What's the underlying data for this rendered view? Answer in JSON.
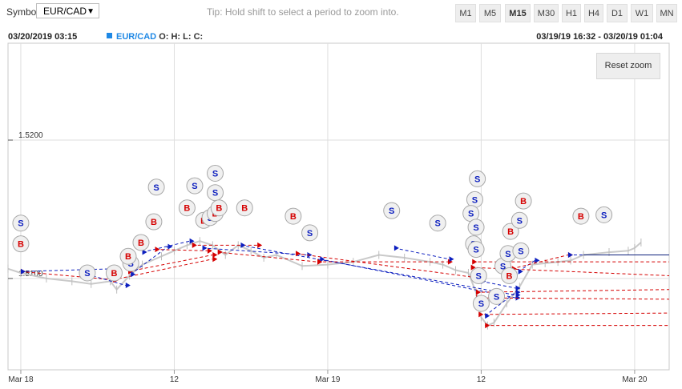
{
  "toolbar": {
    "symbol_label": "Symbol",
    "symbol_value": "EUR/CAD",
    "tip": "Tip: Hold shift to select a period to zoom into.",
    "timeframes": [
      "M1",
      "M5",
      "M15",
      "M30",
      "H1",
      "H4",
      "D1",
      "W1",
      "MN"
    ],
    "active_timeframe": "M15"
  },
  "info": {
    "datetime": "03/20/2019 03:15",
    "symbol": "EUR/CAD",
    "ohlc": "O: H: L: C:",
    "range": "03/19/19 16:32 - 03/20/19 01:04"
  },
  "reset_zoom_label": "Reset zoom",
  "colors": {
    "buy": "#d50000",
    "sell": "#0d1fbf",
    "price": "#c9c9c9",
    "accent": "#1e88e5"
  },
  "chart_data": {
    "type": "line",
    "title": "",
    "xlabel": "",
    "ylabel": "",
    "y_ticks": [
      {
        "value": 1.52,
        "label": "1.5200"
      },
      {
        "value": 1.51,
        "label": "1.5100"
      }
    ],
    "x_ticks": [
      {
        "t": 0,
        "label": "Mar 18"
      },
      {
        "t": 12,
        "label": "12"
      },
      {
        "t": 24,
        "label": "Mar 19"
      },
      {
        "t": 36,
        "label": "12"
      },
      {
        "t": 48,
        "label": "Mar 20"
      }
    ],
    "x_unit": "hours since Mar 18 00:00",
    "ylim": [
      1.5034,
      1.527
    ],
    "xlim": [
      -1,
      50.7
    ],
    "grid": true,
    "price_series": [
      [
        -1,
        1.5107
      ],
      [
        0,
        1.5104
      ],
      [
        2,
        1.51
      ],
      [
        4,
        1.5098
      ],
      [
        5.5,
        1.5096
      ],
      [
        7,
        1.5098
      ],
      [
        7.5,
        1.5092
      ],
      [
        8.5,
        1.5102
      ],
      [
        9.5,
        1.511
      ],
      [
        11,
        1.5116
      ],
      [
        12,
        1.512
      ],
      [
        13,
        1.5124
      ],
      [
        14,
        1.5127
      ],
      [
        15,
        1.5124
      ],
      [
        16,
        1.5117
      ],
      [
        17,
        1.5124
      ],
      [
        18,
        1.512
      ],
      [
        19,
        1.5115
      ],
      [
        20,
        1.5117
      ],
      [
        22,
        1.5109
      ],
      [
        24,
        1.511
      ],
      [
        26,
        1.5112
      ],
      [
        28,
        1.5117
      ],
      [
        30,
        1.5115
      ],
      [
        32,
        1.5112
      ],
      [
        33,
        1.511
      ],
      [
        34,
        1.5106
      ],
      [
        35,
        1.5104
      ],
      [
        35.6,
        1.509
      ],
      [
        36,
        1.5072
      ],
      [
        36.5,
        1.5066
      ],
      [
        37,
        1.5068
      ],
      [
        38,
        1.5082
      ],
      [
        39,
        1.5094
      ],
      [
        40,
        1.511
      ],
      [
        41,
        1.5111
      ],
      [
        42,
        1.5112
      ],
      [
        43,
        1.5113
      ],
      [
        44,
        1.5117
      ],
      [
        46,
        1.5119
      ],
      [
        47.5,
        1.512
      ],
      [
        48,
        1.5122
      ],
      [
        48.5,
        1.5126
      ]
    ],
    "trades": [
      {
        "side": "B",
        "open": [
          0,
          1.5105
        ],
        "close": [
          7.3,
          1.5099
        ]
      },
      {
        "side": "S",
        "open": [
          0,
          1.5105
        ],
        "close": [
          7.3,
          1.5107
        ]
      },
      {
        "side": "S",
        "open": [
          5.2,
          1.5103
        ],
        "close": [
          8.2,
          1.5095
        ]
      },
      {
        "side": "B",
        "open": [
          7.2,
          1.5099
        ],
        "close": [
          15,
          1.5114
        ]
      },
      {
        "side": "B",
        "open": [
          8.4,
          1.5105
        ],
        "close": [
          15,
          1.5117
        ]
      },
      {
        "side": "S",
        "open": [
          9.5,
          1.5119
        ],
        "close": [
          13.2,
          1.5127
        ]
      },
      {
        "side": "S",
        "open": [
          8.6,
          1.5103
        ],
        "close": [
          11.5,
          1.5123
        ]
      },
      {
        "side": "B",
        "open": [
          10.5,
          1.5121
        ],
        "close": [
          14.6,
          1.512
        ]
      },
      {
        "side": "B",
        "open": [
          13.4,
          1.5124
        ],
        "close": [
          18.5,
          1.5124
        ]
      },
      {
        "side": "S",
        "open": [
          14.2,
          1.5122
        ],
        "close": [
          22.4,
          1.5117
        ]
      },
      {
        "side": "B",
        "open": [
          15.4,
          1.5119
        ],
        "close": [
          23.2,
          1.5112
        ]
      },
      {
        "side": "S",
        "open": [
          17.2,
          1.5124
        ],
        "close": [
          38.7,
          1.5088
        ]
      },
      {
        "side": "B",
        "open": [
          21.5,
          1.5118
        ],
        "close": [
          35.3,
          1.5101
        ]
      },
      {
        "side": "S",
        "open": [
          23.4,
          1.5114
        ],
        "close": [
          38.7,
          1.5086
        ]
      },
      {
        "side": "B",
        "open": [
          23.2,
          1.5112
        ],
        "close": [
          33.4,
          1.5112
        ]
      },
      {
        "side": "S",
        "open": [
          29.2,
          1.5122
        ],
        "close": [
          33.5,
          1.5114
        ]
      },
      {
        "side": "B",
        "open": [
          35.3,
          1.5112
        ],
        "close": [
          50.7,
          1.5112
        ]
      },
      {
        "side": "B",
        "open": [
          35.2,
          1.5108
        ],
        "close": [
          50.7,
          1.5102
        ]
      },
      {
        "side": "B",
        "open": [
          35.6,
          1.509
        ],
        "close": [
          50.7,
          1.5092
        ]
      },
      {
        "side": "B",
        "open": [
          35.6,
          1.5086
        ],
        "close": [
          50.7,
          1.5085
        ]
      },
      {
        "side": "B",
        "open": [
          35.8,
          1.5074
        ],
        "close": [
          50.7,
          1.5075
        ]
      },
      {
        "side": "B",
        "open": [
          36.3,
          1.5066
        ],
        "close": [
          50.7,
          1.5066
        ]
      },
      {
        "side": "S",
        "open": [
          36.0,
          1.5098
        ],
        "close": [
          38.7,
          1.5093
        ]
      },
      {
        "side": "S",
        "open": [
          36.3,
          1.5073
        ],
        "close": [
          38.7,
          1.509
        ]
      },
      {
        "side": "S",
        "open": [
          38.9,
          1.5105
        ],
        "close": [
          40.2,
          1.5113
        ]
      },
      {
        "side": "B",
        "open": [
          38.4,
          1.5107
        ],
        "close": [
          42.8,
          1.5117
        ]
      },
      {
        "side": "S",
        "open": [
          42.8,
          1.5117
        ],
        "close": [
          50.7,
          1.5117
        ]
      }
    ],
    "markers": [
      {
        "side": "S",
        "x": 0,
        "y": 1.514
      },
      {
        "side": "B",
        "x": 0,
        "y": 1.5125
      },
      {
        "side": "S",
        "x": 5.2,
        "y": 1.5104
      },
      {
        "side": "B",
        "x": 7.3,
        "y": 1.5104
      },
      {
        "side": "S",
        "x": 8.6,
        "y": 1.5111
      },
      {
        "side": "B",
        "x": 8.4,
        "y": 1.5116
      },
      {
        "side": "B",
        "x": 9.4,
        "y": 1.5126
      },
      {
        "side": "B",
        "x": 10.4,
        "y": 1.5141
      },
      {
        "side": "S",
        "x": 10.6,
        "y": 1.5166
      },
      {
        "side": "S",
        "x": 13.6,
        "y": 1.5167
      },
      {
        "side": "B",
        "x": 13.0,
        "y": 1.5151
      },
      {
        "side": "B",
        "x": 14.3,
        "y": 1.5142
      },
      {
        "side": "S",
        "x": 14.8,
        "y": 1.5144
      },
      {
        "side": "B",
        "x": 15.2,
        "y": 1.5147
      },
      {
        "side": "S",
        "x": 15.2,
        "y": 1.5176
      },
      {
        "side": "S",
        "x": 15.2,
        "y": 1.5162
      },
      {
        "side": "B",
        "x": 15.5,
        "y": 1.5151
      },
      {
        "side": "B",
        "x": 17.5,
        "y": 1.5151
      },
      {
        "side": "B",
        "x": 21.3,
        "y": 1.5145
      },
      {
        "side": "S",
        "x": 22.6,
        "y": 1.5133
      },
      {
        "side": "S",
        "x": 29.0,
        "y": 1.5149
      },
      {
        "side": "S",
        "x": 32.6,
        "y": 1.514
      },
      {
        "side": "S",
        "x": 35.7,
        "y": 1.5172
      },
      {
        "side": "S",
        "x": 35.5,
        "y": 1.5157
      },
      {
        "side": "S",
        "x": 35.2,
        "y": 1.5147
      },
      {
        "side": "S",
        "x": 35.6,
        "y": 1.5137
      },
      {
        "side": "S",
        "x": 35.4,
        "y": 1.5125
      },
      {
        "side": "S",
        "x": 35.6,
        "y": 1.5121
      },
      {
        "side": "S",
        "x": 35.8,
        "y": 1.5102
      },
      {
        "side": "S",
        "x": 36.0,
        "y": 1.5082
      },
      {
        "side": "S",
        "x": 37.2,
        "y": 1.5087
      },
      {
        "side": "S",
        "x": 37.7,
        "y": 1.5109
      },
      {
        "side": "S",
        "x": 38.1,
        "y": 1.5118
      },
      {
        "side": "B",
        "x": 38.2,
        "y": 1.5102
      },
      {
        "side": "B",
        "x": 38.3,
        "y": 1.5134
      },
      {
        "side": "S",
        "x": 39.0,
        "y": 1.5142
      },
      {
        "side": "S",
        "x": 39.1,
        "y": 1.512
      },
      {
        "side": "B",
        "x": 39.3,
        "y": 1.5156
      },
      {
        "side": "B",
        "x": 43.8,
        "y": 1.5145
      },
      {
        "side": "S",
        "x": 45.6,
        "y": 1.5146
      }
    ]
  }
}
